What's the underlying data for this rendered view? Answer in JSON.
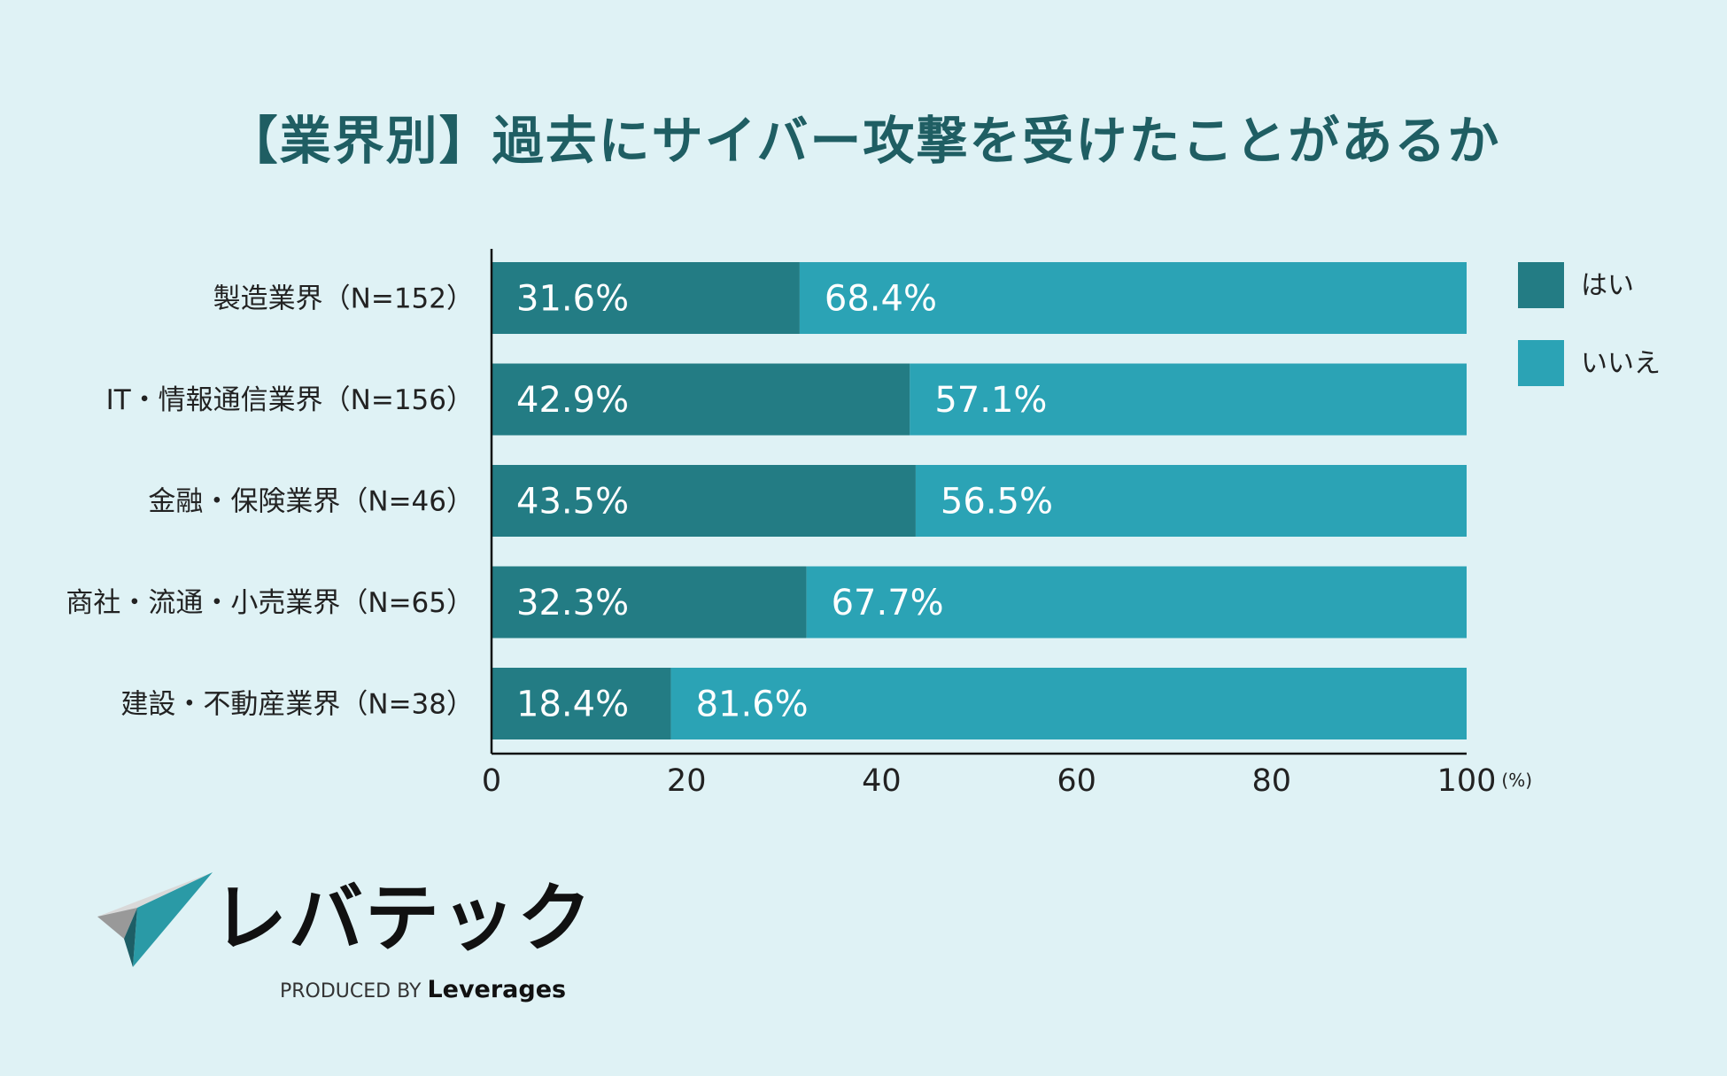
{
  "chart_data": {
    "type": "bar",
    "orientation": "horizontal",
    "stacked": true,
    "title": "【業界別】過去にサイバー攻撃を受けたことがあるか",
    "categories": [
      "製造業界（N=152）",
      "IT・情報通信業界（N=156）",
      "金融・保険業界（N=46）",
      "商社・流通・小売業界（N=65）",
      "建設・不動産業界（N=38）"
    ],
    "series": [
      {
        "name": "はい",
        "color": "#237c84",
        "values": [
          31.6,
          42.9,
          43.5,
          32.3,
          18.4
        ],
        "labels": [
          "31.6%",
          "42.9%",
          "43.5%",
          "32.3%",
          "18.4%"
        ]
      },
      {
        "name": "いいえ",
        "color": "#2ba3b5",
        "values": [
          68.4,
          57.1,
          56.5,
          67.7,
          81.6
        ],
        "labels": [
          "68.4%",
          "57.1%",
          "56.5%",
          "67.7%",
          "81.6%"
        ]
      }
    ],
    "xlim": [
      0,
      100
    ],
    "xticks": [
      "0",
      "20",
      "40",
      "60",
      "80",
      "100"
    ],
    "xunit": "(%)",
    "legend_position": "right",
    "grid": false
  },
  "logo": {
    "name": "レバテック",
    "produced_by": "PRODUCED BY",
    "brand": "Leverages"
  }
}
